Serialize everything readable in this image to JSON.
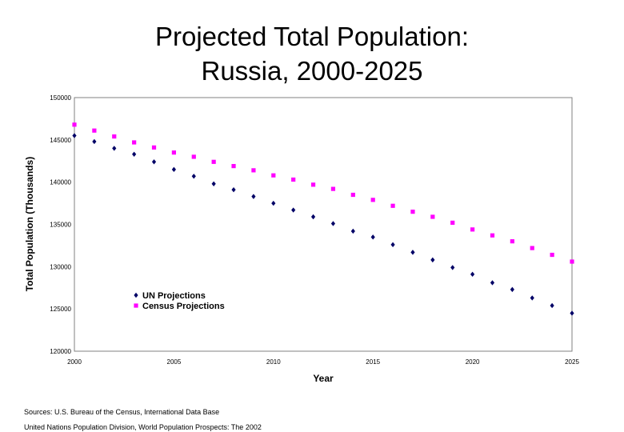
{
  "chart_data": {
    "type": "scatter",
    "title_lines": [
      "Projected Total Population:",
      "Russia, 2000-2025"
    ],
    "xlabel": "Year",
    "ylabel": "Total Population (Thousands)",
    "xlim": [
      2000,
      2025
    ],
    "ylim": [
      120000,
      150000
    ],
    "xticks": [
      "2000",
      "2005",
      "2010",
      "2015",
      "2020",
      "2025"
    ],
    "yticks": [
      "120000",
      "125000",
      "130000",
      "135000",
      "140000",
      "145000",
      "150000"
    ],
    "grid": false,
    "legend": "lower-left",
    "x": [
      2000,
      2001,
      2002,
      2003,
      2004,
      2005,
      2006,
      2007,
      2008,
      2009,
      2010,
      2011,
      2012,
      2013,
      2014,
      2015,
      2016,
      2017,
      2018,
      2019,
      2020,
      2021,
      2022,
      2023,
      2024,
      2025
    ],
    "series": [
      {
        "name": "UN Projections",
        "color": "#000066",
        "marker": "diamond",
        "values": [
          145500,
          144800,
          144000,
          143300,
          142400,
          141500,
          140700,
          139800,
          139100,
          138300,
          137500,
          136700,
          135900,
          135100,
          134200,
          133500,
          132600,
          131700,
          130800,
          129900,
          129100,
          128100,
          127300,
          126300,
          125400,
          124500
        ]
      },
      {
        "name": "Census Projections",
        "color": "#ff00ff",
        "marker": "square",
        "values": [
          146800,
          146100,
          145400,
          144700,
          144100,
          143500,
          143000,
          142400,
          141900,
          141400,
          140800,
          140300,
          139700,
          139200,
          138500,
          137900,
          137200,
          136500,
          135900,
          135200,
          134400,
          133700,
          133000,
          132200,
          131400,
          130600
        ]
      }
    ]
  },
  "sources": {
    "line1": "Sources: U.S. Bureau of the Census, International Data Base",
    "line2": "United Nations Population Division, World Population Prospects: The 2002"
  }
}
